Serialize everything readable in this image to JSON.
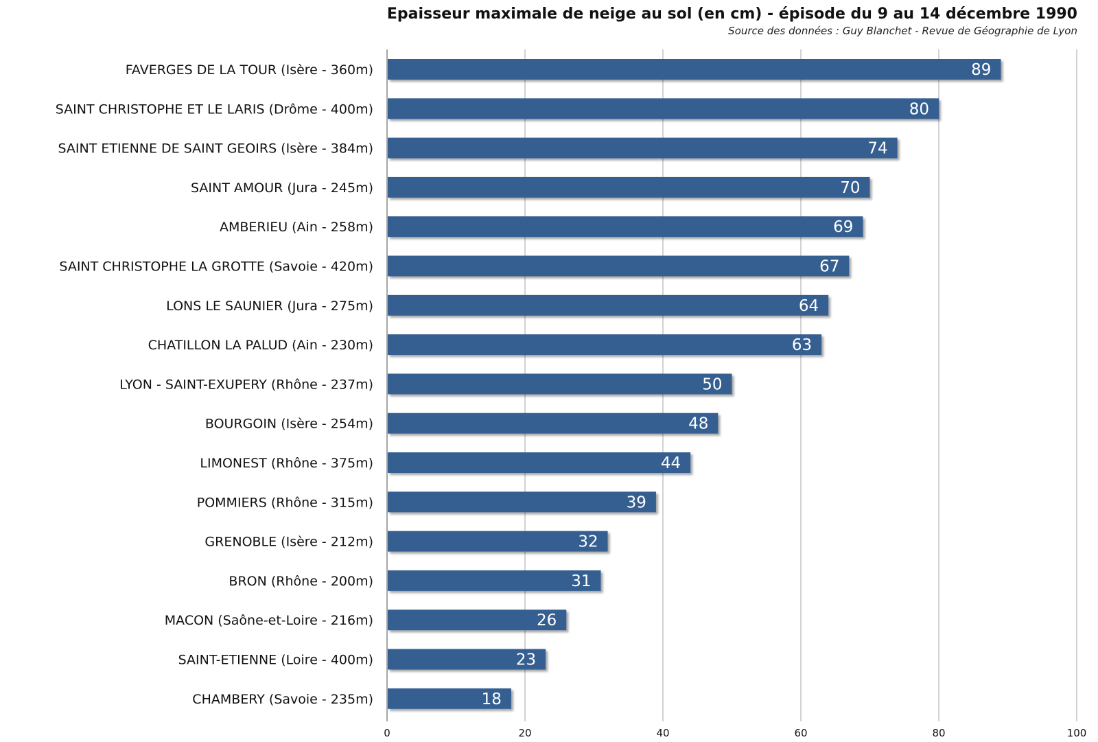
{
  "chart_data": {
    "type": "bar",
    "orientation": "horizontal",
    "title": "Epaisseur maximale de neige au sol (en cm) - épisode du 9 au 14 décembre 1990",
    "subtitle": "Source des données : Guy Blanchet - Revue de Géographie de Lyon",
    "categories": [
      "FAVERGES DE LA TOUR (Isère - 360m)",
      "SAINT CHRISTOPHE ET LE LARIS (Drôme - 400m)",
      "SAINT ETIENNE DE SAINT GEOIRS (Isère - 384m)",
      "SAINT AMOUR (Jura - 245m)",
      "AMBERIEU (Ain - 258m)",
      "SAINT CHRISTOPHE LA GROTTE (Savoie - 420m)",
      "LONS LE SAUNIER (Jura - 275m)",
      "CHATILLON LA PALUD (Ain - 230m)",
      "LYON - SAINT-EXUPERY (Rhône - 237m)",
      "BOURGOIN (Isère - 254m)",
      "LIMONEST (Rhône - 375m)",
      "POMMIERS (Rhône - 315m)",
      "GRENOBLE (Isère - 212m)",
      "BRON (Rhône - 200m)",
      "MACON (Saône-et-Loire - 216m)",
      "SAINT-ETIENNE (Loire - 400m)",
      "CHAMBERY (Savoie - 235m)"
    ],
    "values": [
      89,
      80,
      74,
      70,
      69,
      67,
      64,
      63,
      50,
      48,
      44,
      39,
      32,
      31,
      26,
      23,
      18
    ],
    "xlim": [
      0,
      100
    ],
    "xticks": [
      0,
      20,
      40,
      60,
      80,
      100
    ],
    "grid": true,
    "bar_color": "#365f91",
    "value_label_color": "#ffffff"
  }
}
